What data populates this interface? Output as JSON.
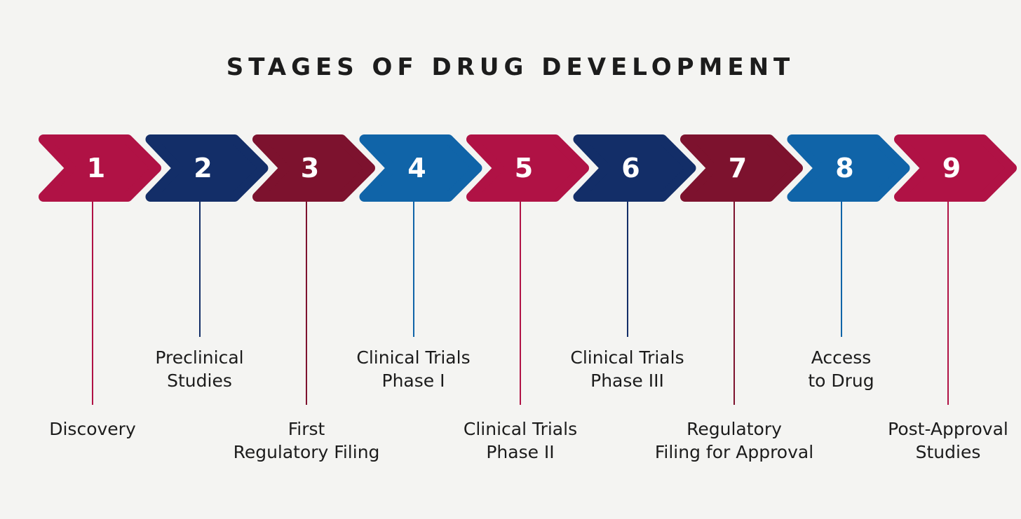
{
  "title": "STAGES OF DRUG DEVELOPMENT",
  "colors": {
    "background": "#F4F4F2",
    "text": "#1C1C1C",
    "number_text": "#FFFFFF",
    "crimson": "#B01245",
    "navy": "#132E68",
    "maroon": "#7D122E",
    "blue": "#1064A8"
  },
  "chart_data": {
    "type": "process-timeline",
    "title": "STAGES OF DRUG DEVELOPMENT",
    "stages": [
      {
        "number": "1",
        "label": "Discovery",
        "label_lines": [
          "Discovery"
        ],
        "color": "#B01245",
        "label_row": "lower"
      },
      {
        "number": "2",
        "label": "Preclinical Studies",
        "label_lines": [
          "Preclinical",
          "Studies"
        ],
        "color": "#132E68",
        "label_row": "upper"
      },
      {
        "number": "3",
        "label": "First Regulatory Filing",
        "label_lines": [
          "First",
          "Regulatory Filing"
        ],
        "color": "#7D122E",
        "label_row": "lower"
      },
      {
        "number": "4",
        "label": "Clinical Trials Phase I",
        "label_lines": [
          "Clinical Trials",
          "Phase I"
        ],
        "color": "#1064A8",
        "label_row": "upper"
      },
      {
        "number": "5",
        "label": "Clinical Trials Phase II",
        "label_lines": [
          "Clinical Trials",
          "Phase II"
        ],
        "color": "#B01245",
        "label_row": "lower"
      },
      {
        "number": "6",
        "label": "Clinical Trials Phase III",
        "label_lines": [
          "Clinical Trials",
          "Phase III"
        ],
        "color": "#132E68",
        "label_row": "upper"
      },
      {
        "number": "7",
        "label": "Regulatory Filing for Approval",
        "label_lines": [
          "Regulatory",
          "Filing for Approval"
        ],
        "color": "#7D122E",
        "label_row": "lower"
      },
      {
        "number": "8",
        "label": "Access to Drug",
        "label_lines": [
          "Access",
          "to Drug"
        ],
        "color": "#1064A8",
        "label_row": "upper"
      },
      {
        "number": "9",
        "label": "Post-Approval Studies",
        "label_lines": [
          "Post-Approval",
          "Studies"
        ],
        "color": "#B01245",
        "label_row": "lower"
      }
    ]
  }
}
